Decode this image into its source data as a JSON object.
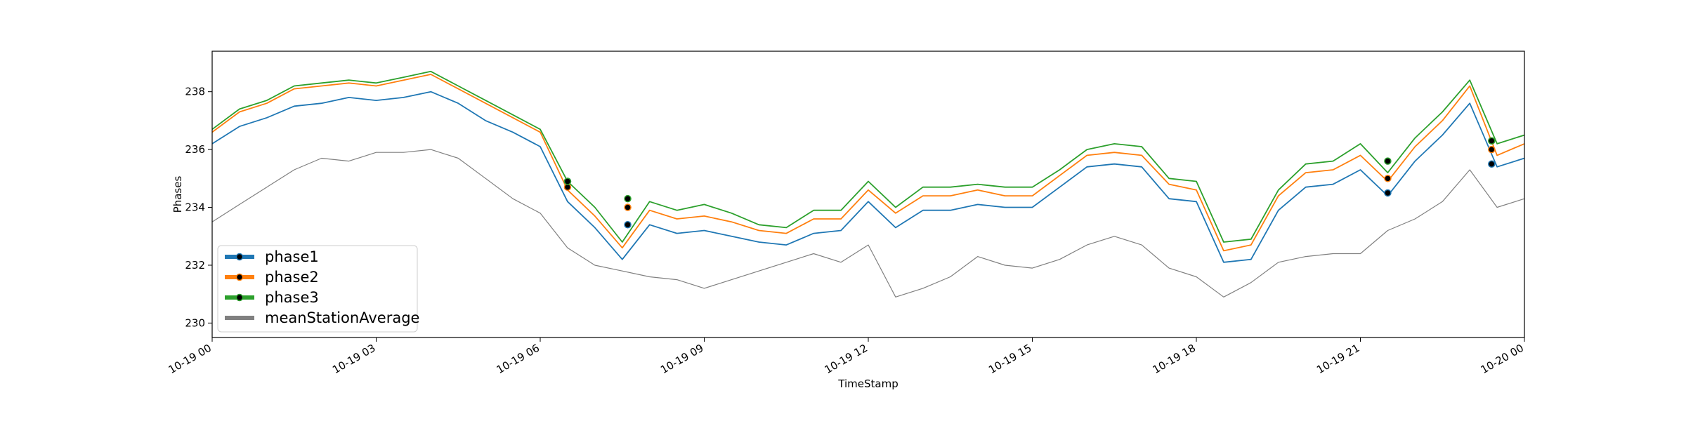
{
  "chart_data": {
    "type": "line",
    "title": "",
    "xlabel": "TimeStamp",
    "ylabel": "Phases",
    "xlim": [
      "10-19 00",
      "10-20 00"
    ],
    "ylim": [
      229.5,
      239.4
    ],
    "grid": false,
    "legend_position": "lower-left",
    "x_ticks": [
      "10-19 00",
      "10-19 03",
      "10-19 06",
      "10-19 09",
      "10-19 12",
      "10-19 15",
      "10-19 18",
      "10-19 21",
      "10-20 00"
    ],
    "y_ticks": [
      230,
      232,
      234,
      236,
      238
    ],
    "x_hours": [
      0,
      0.5,
      1,
      1.5,
      2,
      2.5,
      3,
      3.5,
      4,
      4.5,
      5,
      5.5,
      6,
      6.5,
      7,
      7.5,
      8,
      8.5,
      9,
      9.5,
      10,
      10.5,
      11,
      11.5,
      12,
      12.5,
      13,
      13.5,
      14,
      14.5,
      15,
      15.5,
      16,
      16.5,
      17,
      17.5,
      18,
      18.5,
      19,
      19.5,
      20,
      20.5,
      21,
      21.5,
      22,
      22.5,
      23,
      23.5,
      24
    ],
    "series": [
      {
        "name": "phase1",
        "color": "#1f77b4",
        "values": [
          236.2,
          236.8,
          237.1,
          237.5,
          237.6,
          237.8,
          237.7,
          237.8,
          238.0,
          237.6,
          237.0,
          236.6,
          236.1,
          234.2,
          233.3,
          232.2,
          233.4,
          233.1,
          233.2,
          233.0,
          232.8,
          232.7,
          233.1,
          233.2,
          234.2,
          233.3,
          233.9,
          233.9,
          234.1,
          234.0,
          234.0,
          234.7,
          235.4,
          235.5,
          235.4,
          234.3,
          234.2,
          232.1,
          232.2,
          233.9,
          234.7,
          234.8,
          235.3,
          234.4,
          235.6,
          236.5,
          237.6,
          235.4,
          235.7
        ]
      },
      {
        "name": "phase2",
        "color": "#ff7f0e",
        "values": [
          236.6,
          237.3,
          237.6,
          238.1,
          238.2,
          238.3,
          238.2,
          238.4,
          238.6,
          238.1,
          237.6,
          237.1,
          236.6,
          234.6,
          233.7,
          232.6,
          233.9,
          233.6,
          233.7,
          233.5,
          233.2,
          233.1,
          233.6,
          233.6,
          234.6,
          233.8,
          234.4,
          234.4,
          234.6,
          234.4,
          234.4,
          235.1,
          235.8,
          235.9,
          235.8,
          234.8,
          234.6,
          232.5,
          232.7,
          234.4,
          235.2,
          235.3,
          235.8,
          234.9,
          236.1,
          237.0,
          238.2,
          235.8,
          236.2
        ]
      },
      {
        "name": "phase3",
        "color": "#2ca02c",
        "values": [
          236.7,
          237.4,
          237.7,
          238.2,
          238.3,
          238.4,
          238.3,
          238.5,
          238.7,
          238.2,
          237.7,
          237.2,
          236.7,
          234.9,
          234.0,
          232.8,
          234.2,
          233.9,
          234.1,
          233.8,
          233.4,
          233.3,
          233.9,
          233.9,
          234.9,
          234.0,
          234.7,
          234.7,
          234.8,
          234.7,
          234.7,
          235.3,
          236.0,
          236.2,
          236.1,
          235.0,
          234.9,
          232.8,
          232.9,
          234.6,
          235.5,
          235.6,
          236.2,
          235.2,
          236.4,
          237.3,
          238.4,
          236.2,
          236.5
        ]
      },
      {
        "name": "meanStationAverage",
        "color": "#808080",
        "values": [
          233.5,
          234.1,
          234.7,
          235.3,
          235.7,
          235.6,
          235.9,
          235.9,
          236.0,
          235.7,
          235.0,
          234.3,
          233.8,
          232.6,
          232.0,
          231.8,
          231.6,
          231.5,
          231.2,
          231.5,
          231.8,
          232.1,
          232.4,
          232.1,
          232.7,
          230.9,
          231.2,
          231.6,
          232.3,
          232.0,
          231.9,
          232.2,
          232.7,
          233.0,
          232.7,
          231.9,
          231.6,
          230.9,
          231.4,
          232.1,
          232.3,
          232.4,
          232.4,
          233.2,
          233.6,
          234.2,
          235.3,
          234.0,
          234.3
        ]
      }
    ],
    "event_markers": [
      {
        "x": 6.5,
        "values": [
          234.9,
          234.7,
          234.9
        ]
      },
      {
        "x": 7.6,
        "values": [
          233.4,
          234.0,
          234.3
        ]
      },
      {
        "x": 21.5,
        "values": [
          234.5,
          235.0,
          235.6
        ]
      },
      {
        "x": 23.4,
        "values": [
          235.5,
          236.0,
          236.3
        ]
      }
    ]
  }
}
